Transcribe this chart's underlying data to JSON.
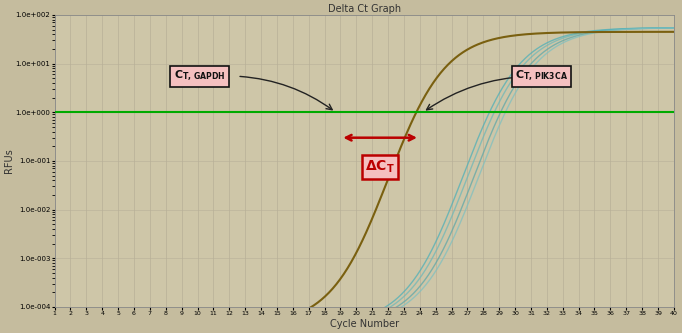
{
  "title": "Delta Ct Graph",
  "xlabel": "Cycle Number",
  "ylabel": "RFUs",
  "x_min": 1,
  "x_max": 40,
  "y_log_min": 0.0001,
  "y_log_max": 100.0,
  "background_color": "#c5bc9e",
  "plot_bg_color": "#cec6a8",
  "grid_color": "#b8b098",
  "threshold_y": 1.0,
  "gapdh_ct": 19,
  "pik3ca_ct": 24,
  "gapdh_color": "#7a6010",
  "pik3ca_colors": [
    "#70b8b8",
    "#60a8a8",
    "#50b0b8",
    "#80c0c0"
  ],
  "ct_box_bg": "#f5c0c0",
  "ct_box_edge": "#111111",
  "delta_ct_color": "#bb0000",
  "arrow_color": "#222222",
  "threshold_color": "#00aa00",
  "title_fontsize": 7,
  "axis_fontsize": 6,
  "label_fontsize": 7,
  "ytick_labels": [
    "1.0e-004",
    "1.0e-003",
    "1.0e-002",
    "1.0e-001",
    "1.0e+000",
    "1.0e+001",
    "1.0e+002"
  ],
  "ytick_values": [
    0.0001,
    0.001,
    0.01,
    0.1,
    1.0,
    10.0,
    100.0
  ]
}
